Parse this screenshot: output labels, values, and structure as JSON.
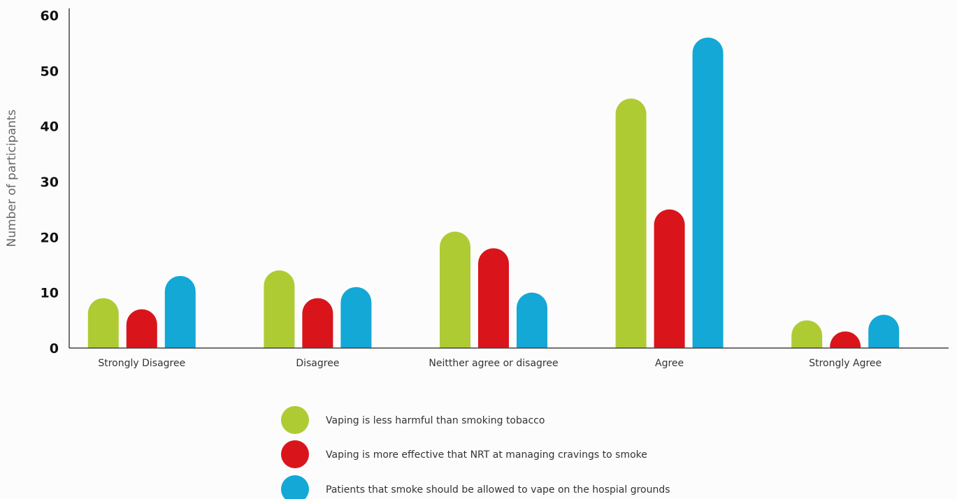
{
  "chart_data": {
    "type": "bar",
    "ylabel": "Number of participants",
    "xlabel": "",
    "ylim": [
      0,
      60
    ],
    "yticks": [
      0,
      10,
      20,
      30,
      40,
      50,
      60
    ],
    "grid": false,
    "legend_position": "bottom-center",
    "categories": [
      "Strongly Disagree",
      "Disagree",
      "Neitther agree or disagree",
      "Agree",
      "Strongly Agree"
    ],
    "series": [
      {
        "name": "Vaping is less harmful than smoking tobacco",
        "color": "#afcb33",
        "values": [
          9,
          14,
          21,
          45,
          5
        ]
      },
      {
        "name": "Vaping is more effective that NRT at managing cravings to smoke",
        "color": "#d9151b",
        "values": [
          7,
          9,
          18,
          25,
          3
        ]
      },
      {
        "name": "Patients that smoke should be allowed to vape on the hospial grounds",
        "color": "#13a8d6",
        "values": [
          13,
          11,
          10,
          56,
          6
        ]
      }
    ]
  }
}
